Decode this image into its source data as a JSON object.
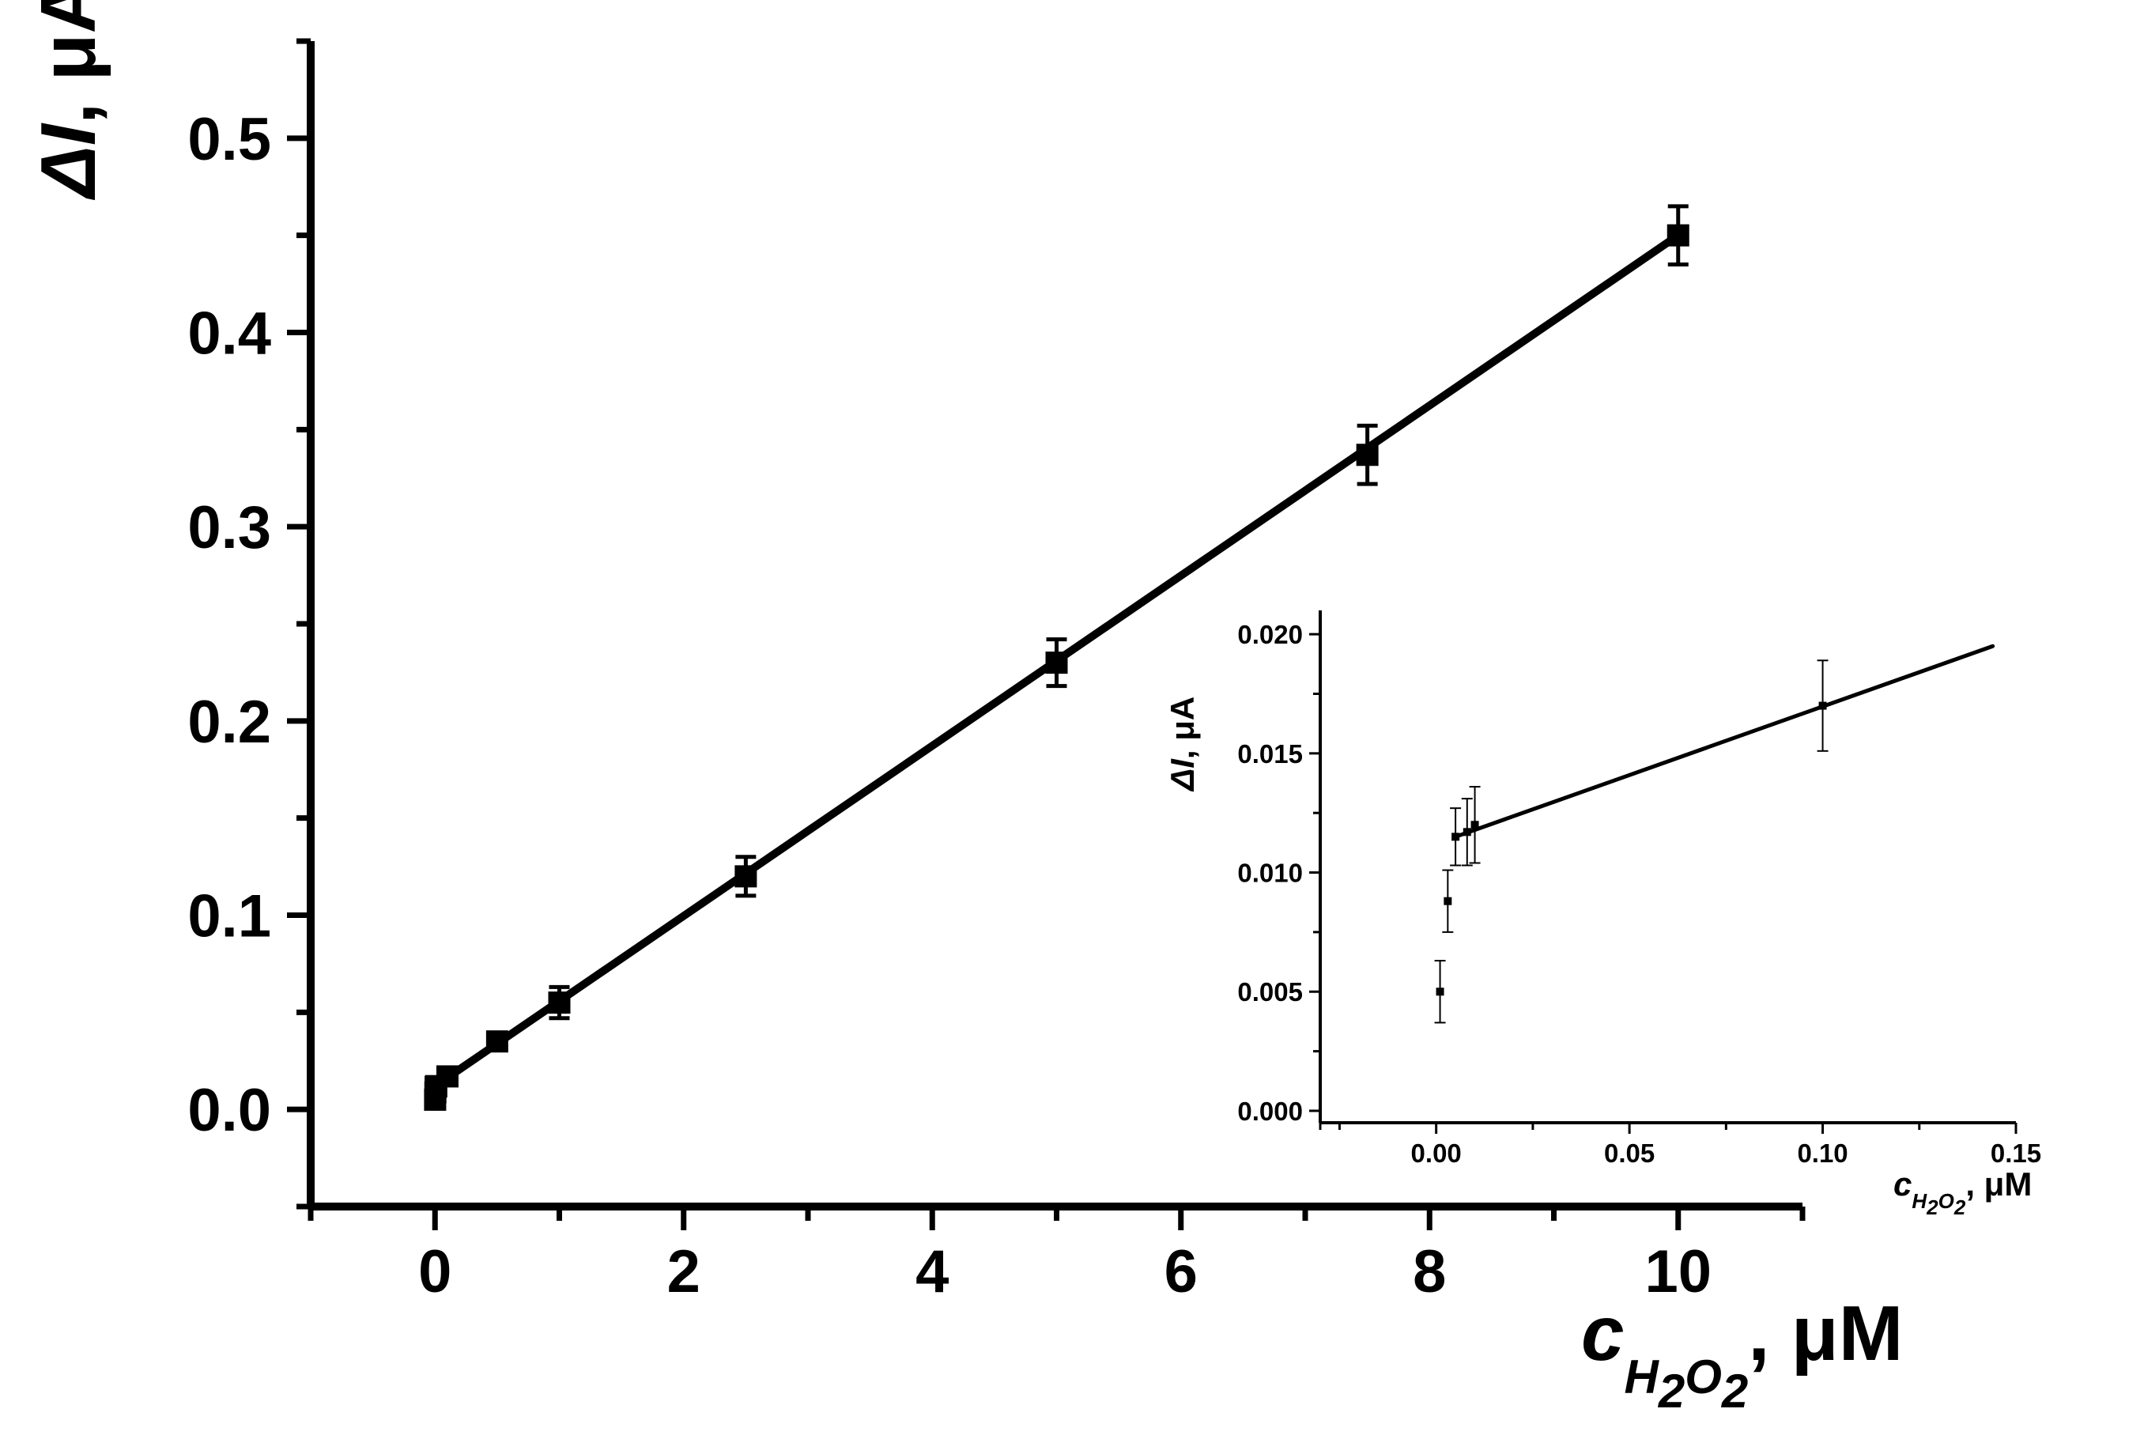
{
  "chart_data": [
    {
      "type": "line",
      "title": "",
      "xlabel": {
        "symbol": "c",
        "subscript": [
          "H",
          "2",
          "O",
          "2"
        ],
        "unit": ", μM"
      },
      "ylabel": {
        "symbol": "ΔI",
        "unit": ", μA"
      },
      "xlim": [
        -1,
        11
      ],
      "ylim": [
        -0.05,
        0.55
      ],
      "x_ticks": [
        0,
        2,
        4,
        6,
        8,
        10
      ],
      "x_tick_labels": [
        "0",
        "2",
        "4",
        "6",
        "8",
        "10"
      ],
      "y_ticks": [
        0.0,
        0.1,
        0.2,
        0.3,
        0.4,
        0.5
      ],
      "y_tick_labels": [
        "0.0",
        "0.1",
        "0.2",
        "0.3",
        "0.4",
        "0.5"
      ],
      "grid": false,
      "legend": "none",
      "series": [
        {
          "marker": "square",
          "x": [
            0.001,
            0.003,
            0.005,
            0.008,
            0.01,
            0.1,
            0.5,
            1.0,
            2.5,
            5.0,
            7.5,
            10.0
          ],
          "y": [
            0.005,
            0.0088,
            0.0115,
            0.0118,
            0.012,
            0.017,
            0.035,
            0.055,
            0.12,
            0.23,
            0.337,
            0.45
          ],
          "error": [
            0.002,
            0.002,
            0.002,
            0.002,
            0.002,
            0.002,
            0.004,
            0.008,
            0.01,
            0.012,
            0.015,
            0.015
          ]
        }
      ],
      "fit_line": {
        "x": [
          0.0,
          10.0
        ],
        "y": [
          0.012,
          0.45
        ]
      }
    },
    {
      "type": "line",
      "title": "",
      "xlabel": {
        "symbol": "c",
        "subscript": [
          "H",
          "2",
          "O",
          "2"
        ],
        "unit": ", μM"
      },
      "ylabel": {
        "symbol": "ΔI",
        "unit": ", μA"
      },
      "xlim": [
        -0.03,
        0.15
      ],
      "ylim": [
        -0.0005,
        0.021
      ],
      "x_ticks": [
        0.0,
        0.05,
        0.1,
        0.15
      ],
      "x_tick_labels": [
        "0.00",
        "0.05",
        "0.10",
        "0.15"
      ],
      "y_ticks": [
        0.0,
        0.005,
        0.01,
        0.015,
        0.02
      ],
      "y_tick_labels": [
        "0.000",
        "0.005",
        "0.010",
        "0.015",
        "0.020"
      ],
      "grid": false,
      "legend": "none",
      "series": [
        {
          "marker": "square",
          "x": [
            0.001,
            0.003,
            0.005,
            0.008,
            0.01,
            0.1
          ],
          "y": [
            0.005,
            0.0088,
            0.0115,
            0.0117,
            0.012,
            0.017
          ],
          "error": [
            0.0013,
            0.0013,
            0.0012,
            0.0014,
            0.0016,
            0.0019
          ]
        }
      ],
      "fit_line": {
        "x": [
          0.005,
          0.144
        ],
        "y": [
          0.0115,
          0.0195
        ]
      }
    }
  ]
}
